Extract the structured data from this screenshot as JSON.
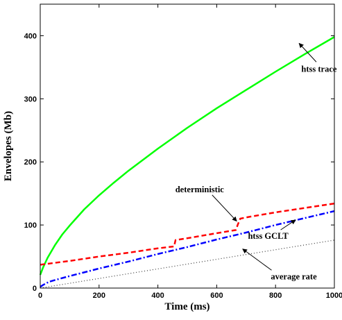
{
  "chart_data": {
    "type": "line",
    "title": "",
    "xlabel": "Time (ms)",
    "ylabel": "Envelopes (Mb)",
    "xlim": [
      0,
      1000
    ],
    "ylim": [
      0,
      450
    ],
    "xticks": [
      0,
      200,
      400,
      600,
      800,
      1000
    ],
    "yticks": [
      0,
      100,
      200,
      300,
      400
    ],
    "grid": false,
    "legend": "none",
    "series": [
      {
        "name": "htss trace",
        "color": "#00ff00",
        "style": "solid",
        "x": [
          0,
          10,
          25,
          50,
          75,
          100,
          150,
          200,
          250,
          300,
          400,
          500,
          600,
          700,
          800,
          900,
          1000
        ],
        "y": [
          21,
          33,
          48,
          68,
          85,
          99,
          125,
          147,
          167,
          186,
          221,
          254,
          285,
          314,
          343,
          371,
          398
        ]
      },
      {
        "name": "deterministic",
        "color": "#ff0000",
        "style": "dashed",
        "x": [
          0,
          50,
          100,
          200,
          300,
          400,
          455,
          460,
          500,
          600,
          665,
          672,
          680,
          700,
          800,
          900,
          1000
        ],
        "y": [
          37,
          40,
          43,
          50,
          56,
          63,
          66,
          76,
          79,
          87,
          92,
          101,
          110,
          112,
          120,
          127,
          134
        ]
      },
      {
        "name": "htss GCLT",
        "color": "#0000ff",
        "style": "dashdot",
        "x": [
          0,
          10,
          30,
          60,
          100,
          200,
          300,
          400,
          500,
          600,
          700,
          800,
          900,
          1000
        ],
        "y": [
          2,
          5,
          10,
          14,
          19,
          31,
          42,
          54,
          65,
          77,
          88,
          100,
          111,
          122
        ]
      },
      {
        "name": "average rate",
        "color": "#333333",
        "style": "dotted",
        "x": [
          0,
          1000
        ],
        "y": [
          0,
          76
        ]
      }
    ],
    "annotations": [
      {
        "text": "htss trace",
        "points_to": [
          880,
          388
        ],
        "text_at": [
          948,
          343
        ]
      },
      {
        "text": "deterministic",
        "points_to": [
          668,
          106
        ],
        "text_at": [
          542,
          152
        ]
      },
      {
        "text": "htss GCLT",
        "points_to": [
          868,
          108
        ],
        "text_at": [
          775,
          78
        ]
      },
      {
        "text": "average rate",
        "points_to": [
          688,
          62
        ],
        "text_at": [
          862,
          14
        ]
      }
    ]
  }
}
